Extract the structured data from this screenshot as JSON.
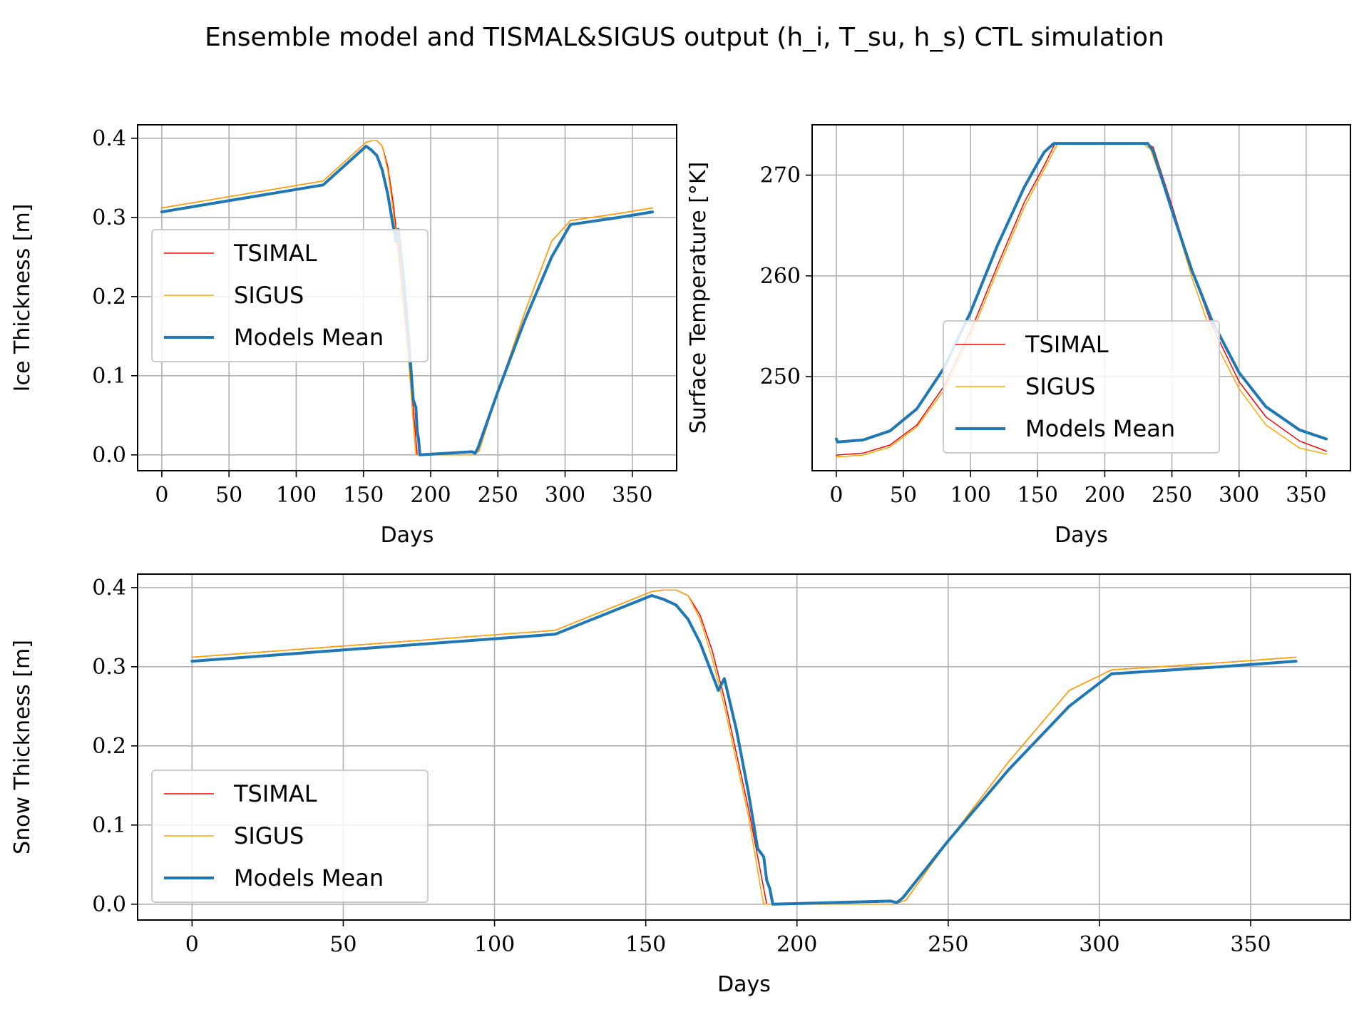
{
  "figure": {
    "title": "Ensemble model and TISMAL&SIGUS output (h_i, T_su, h_s) CTL simulation"
  },
  "colors": {
    "tsimal": "#ff0000",
    "sigus": "#ffa500",
    "mean": "#1f77b4",
    "grid": "#b0b0b0"
  },
  "chart_data": [
    {
      "id": "ice",
      "type": "line",
      "xlabel": "Days",
      "ylabel": "Ice Thickness [m]",
      "xlim": [
        -18,
        383
      ],
      "ylim": [
        -0.02,
        0.417
      ],
      "xticks": [
        0,
        50,
        100,
        150,
        200,
        250,
        300,
        350
      ],
      "yticks": [
        0.0,
        0.1,
        0.2,
        0.3,
        0.4
      ],
      "ytick_labels": [
        "0.0",
        "0.1",
        "0.2",
        "0.3",
        "0.4"
      ],
      "grid": true,
      "legend_position": "center-left",
      "series": [
        {
          "name": "TSIMAL",
          "color_key": "tsimal",
          "width": 1.5,
          "x": [
            0,
            120,
            152,
            156,
            160,
            164,
            168,
            172,
            176,
            180,
            184,
            188,
            190,
            200,
            232,
            236,
            250,
            270,
            290,
            304,
            340,
            365
          ],
          "y": [
            0.312,
            0.346,
            0.395,
            0.397,
            0.397,
            0.39,
            0.365,
            0.32,
            0.26,
            0.19,
            0.12,
            0.04,
            0.0,
            0.0,
            0.0,
            0.005,
            0.08,
            0.18,
            0.27,
            0.296,
            0.305,
            0.312
          ]
        },
        {
          "name": "SIGUS",
          "color_key": "sigus",
          "width": 1.5,
          "x": [
            0,
            120,
            152,
            156,
            160,
            164,
            168,
            172,
            176,
            180,
            184,
            188,
            189,
            200,
            232,
            236,
            250,
            270,
            290,
            304,
            340,
            365
          ],
          "y": [
            0.312,
            0.346,
            0.395,
            0.397,
            0.397,
            0.39,
            0.36,
            0.31,
            0.25,
            0.18,
            0.11,
            0.02,
            0.0,
            0.0,
            0.0,
            0.005,
            0.08,
            0.18,
            0.27,
            0.296,
            0.305,
            0.312
          ]
        },
        {
          "name": "Models Mean",
          "color_key": "mean",
          "width": 4,
          "x": [
            0,
            120,
            152,
            156,
            160,
            164,
            168,
            172,
            174,
            176,
            180,
            184,
            187,
            189,
            190,
            191,
            192,
            231,
            233,
            235,
            250,
            270,
            290,
            304,
            340,
            365
          ],
          "y": [
            0.307,
            0.341,
            0.39,
            0.385,
            0.378,
            0.36,
            0.33,
            0.29,
            0.27,
            0.285,
            0.22,
            0.14,
            0.07,
            0.06,
            0.03,
            0.02,
            0.0,
            0.004,
            0.002,
            0.008,
            0.08,
            0.17,
            0.25,
            0.291,
            0.3,
            0.307
          ]
        }
      ]
    },
    {
      "id": "temp",
      "type": "line",
      "xlabel": "Days",
      "ylabel": "Surface Temperature [°K]",
      "xlim": [
        -18,
        383
      ],
      "ylim": [
        240.65,
        275.0
      ],
      "xticks": [
        0,
        50,
        100,
        150,
        200,
        250,
        300,
        350
      ],
      "yticks": [
        250,
        260,
        270
      ],
      "ytick_labels": [
        "250",
        "260",
        "270"
      ],
      "grid": true,
      "legend_position": "lower-center",
      "series": [
        {
          "name": "TSIMAL",
          "color_key": "tsimal",
          "width": 1.5,
          "x": [
            0,
            20,
            40,
            60,
            80,
            100,
            120,
            140,
            155,
            163,
            230,
            236,
            250,
            265,
            280,
            300,
            320,
            345,
            365
          ],
          "y": [
            242.2,
            242.4,
            243.2,
            245.2,
            249.0,
            254.5,
            261.0,
            267.3,
            271.0,
            273.15,
            273.15,
            272.8,
            267.0,
            260.5,
            255.0,
            249.5,
            246.0,
            243.6,
            242.6
          ]
        },
        {
          "name": "SIGUS",
          "color_key": "sigus",
          "width": 1.5,
          "x": [
            0,
            20,
            40,
            60,
            80,
            100,
            120,
            140,
            155,
            165,
            228,
            234,
            250,
            265,
            280,
            300,
            320,
            345,
            365
          ],
          "y": [
            242.0,
            242.2,
            243.0,
            245.0,
            248.6,
            254.0,
            260.5,
            266.8,
            270.6,
            273.15,
            273.15,
            272.6,
            266.5,
            259.8,
            254.0,
            248.8,
            245.2,
            242.9,
            242.3
          ]
        },
        {
          "name": "Models Mean",
          "color_key": "mean",
          "width": 4,
          "x": [
            0,
            1,
            20,
            40,
            60,
            80,
            100,
            120,
            140,
            150,
            155,
            162,
            232,
            236,
            250,
            265,
            280,
            300,
            320,
            345,
            365
          ],
          "y": [
            243.8,
            243.5,
            243.7,
            244.6,
            246.8,
            250.8,
            256.4,
            263.0,
            268.8,
            271.2,
            272.3,
            273.15,
            273.15,
            272.4,
            266.5,
            260.5,
            255.5,
            250.4,
            247.0,
            244.7,
            243.8
          ]
        }
      ]
    },
    {
      "id": "snow",
      "type": "line",
      "xlabel": "Days",
      "ylabel": "Snow Thickness [m]",
      "xlim": [
        -18,
        383
      ],
      "ylim": [
        -0.02,
        0.417
      ],
      "xticks": [
        0,
        50,
        100,
        150,
        200,
        250,
        300,
        350
      ],
      "yticks": [
        0.0,
        0.1,
        0.2,
        0.3,
        0.4
      ],
      "ytick_labels": [
        "0.0",
        "0.1",
        "0.2",
        "0.3",
        "0.4"
      ],
      "grid": true,
      "legend_position": "lower-left",
      "series": [
        {
          "name": "TSIMAL",
          "color_key": "tsimal",
          "width": 1.5,
          "x": [
            0,
            120,
            152,
            156,
            160,
            164,
            168,
            172,
            176,
            180,
            184,
            188,
            190,
            200,
            232,
            236,
            250,
            270,
            290,
            304,
            340,
            365
          ],
          "y": [
            0.312,
            0.346,
            0.395,
            0.397,
            0.397,
            0.39,
            0.365,
            0.32,
            0.26,
            0.19,
            0.12,
            0.04,
            0.0,
            0.0,
            0.0,
            0.005,
            0.08,
            0.18,
            0.27,
            0.296,
            0.305,
            0.312
          ]
        },
        {
          "name": "SIGUS",
          "color_key": "sigus",
          "width": 1.5,
          "x": [
            0,
            120,
            152,
            156,
            160,
            164,
            168,
            172,
            176,
            180,
            184,
            188,
            189,
            200,
            232,
            236,
            250,
            270,
            290,
            304,
            340,
            365
          ],
          "y": [
            0.312,
            0.346,
            0.395,
            0.397,
            0.397,
            0.39,
            0.36,
            0.31,
            0.25,
            0.18,
            0.11,
            0.02,
            0.0,
            0.0,
            0.0,
            0.005,
            0.08,
            0.18,
            0.27,
            0.296,
            0.305,
            0.312
          ]
        },
        {
          "name": "Models Mean",
          "color_key": "mean",
          "width": 4,
          "x": [
            0,
            120,
            152,
            156,
            160,
            164,
            168,
            172,
            174,
            176,
            180,
            184,
            187,
            189,
            190,
            191,
            192,
            231,
            233,
            235,
            250,
            270,
            290,
            304,
            340,
            365
          ],
          "y": [
            0.307,
            0.341,
            0.39,
            0.385,
            0.378,
            0.36,
            0.33,
            0.29,
            0.27,
            0.285,
            0.22,
            0.14,
            0.07,
            0.06,
            0.03,
            0.02,
            0.0,
            0.004,
            0.002,
            0.008,
            0.08,
            0.17,
            0.25,
            0.291,
            0.3,
            0.307
          ]
        }
      ]
    }
  ]
}
